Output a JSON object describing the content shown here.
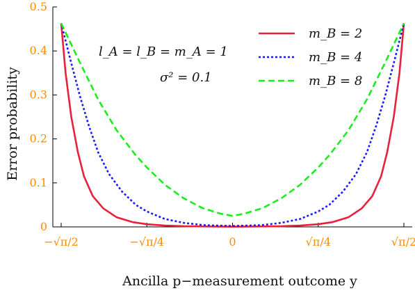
{
  "chart_data": {
    "type": "line",
    "xlabel": "Ancilla p−measurement outcome y",
    "ylabel": "Error probability",
    "xlim": [
      -0.8862,
      0.8862
    ],
    "ylim": [
      0,
      0.5
    ],
    "xticks": [
      -0.8862,
      -0.4431,
      0,
      0.4431,
      0.8862
    ],
    "xtick_labels": [
      "−√π/2",
      "−√π/4",
      "0",
      "√π/4",
      "√π/2"
    ],
    "yticks": [
      0,
      0.1,
      0.2,
      0.3,
      0.4,
      0.5
    ],
    "ytick_labels": [
      "0",
      "0.1",
      "0.2",
      "0.3",
      "0.4",
      "0.5"
    ],
    "tick_color": "#ff8c00",
    "annotations": [
      "l_A = l_B = m_A = 1",
      "σ² = 0.1"
    ],
    "legend_placement": "top-right",
    "series": [
      {
        "name": "m_B = 2",
        "color": "#e8203c",
        "style": "solid",
        "x": [
          -0.8862,
          -0.8634,
          -0.8339,
          -0.8,
          -0.7683,
          -0.7228,
          -0.6683,
          -0.6,
          -0.5185,
          -0.4431,
          -0.35,
          -0.25,
          -0.15,
          0,
          0.15,
          0.25,
          0.35,
          0.4431,
          0.5185,
          0.6,
          0.6683,
          0.7228,
          0.7683,
          0.8,
          0.8339,
          0.8634,
          0.8862
        ],
        "y": [
          0.463,
          0.35,
          0.25,
          0.17,
          0.115,
          0.07,
          0.042,
          0.022,
          0.011,
          0.006,
          0.003,
          0.0015,
          0.001,
          0.0005,
          0.001,
          0.0015,
          0.003,
          0.006,
          0.011,
          0.022,
          0.042,
          0.07,
          0.115,
          0.17,
          0.25,
          0.35,
          0.463
        ]
      },
      {
        "name": "m_B = 4",
        "color": "#1a1aff",
        "style": "dotted",
        "x": [
          -0.8862,
          -0.8385,
          -0.7908,
          -0.7431,
          -0.6954,
          -0.6385,
          -0.5708,
          -0.5,
          -0.4431,
          -0.35,
          -0.25,
          -0.15,
          0,
          0.15,
          0.25,
          0.35,
          0.4431,
          0.5,
          0.5708,
          0.6385,
          0.6954,
          0.7431,
          0.7908,
          0.8385,
          0.8862
        ],
        "y": [
          0.463,
          0.38,
          0.3,
          0.23,
          0.17,
          0.12,
          0.08,
          0.05,
          0.035,
          0.018,
          0.009,
          0.004,
          0.002,
          0.004,
          0.009,
          0.018,
          0.035,
          0.05,
          0.08,
          0.12,
          0.17,
          0.23,
          0.3,
          0.38,
          0.463
        ]
      },
      {
        "name": "m_B = 8",
        "color": "#1aee1a",
        "style": "dashed",
        "x": [
          -0.8862,
          -0.7908,
          -0.6954,
          -0.6,
          -0.5046,
          -0.4431,
          -0.3477,
          -0.2523,
          -0.1569,
          -0.0615,
          0,
          0.0615,
          0.1569,
          0.2523,
          0.3477,
          0.4431,
          0.5046,
          0.6,
          0.6954,
          0.7908,
          0.8862
        ],
        "y": [
          0.463,
          0.375,
          0.29,
          0.22,
          0.165,
          0.135,
          0.095,
          0.065,
          0.043,
          0.03,
          0.025,
          0.03,
          0.043,
          0.065,
          0.095,
          0.135,
          0.165,
          0.22,
          0.29,
          0.375,
          0.463
        ]
      }
    ]
  }
}
